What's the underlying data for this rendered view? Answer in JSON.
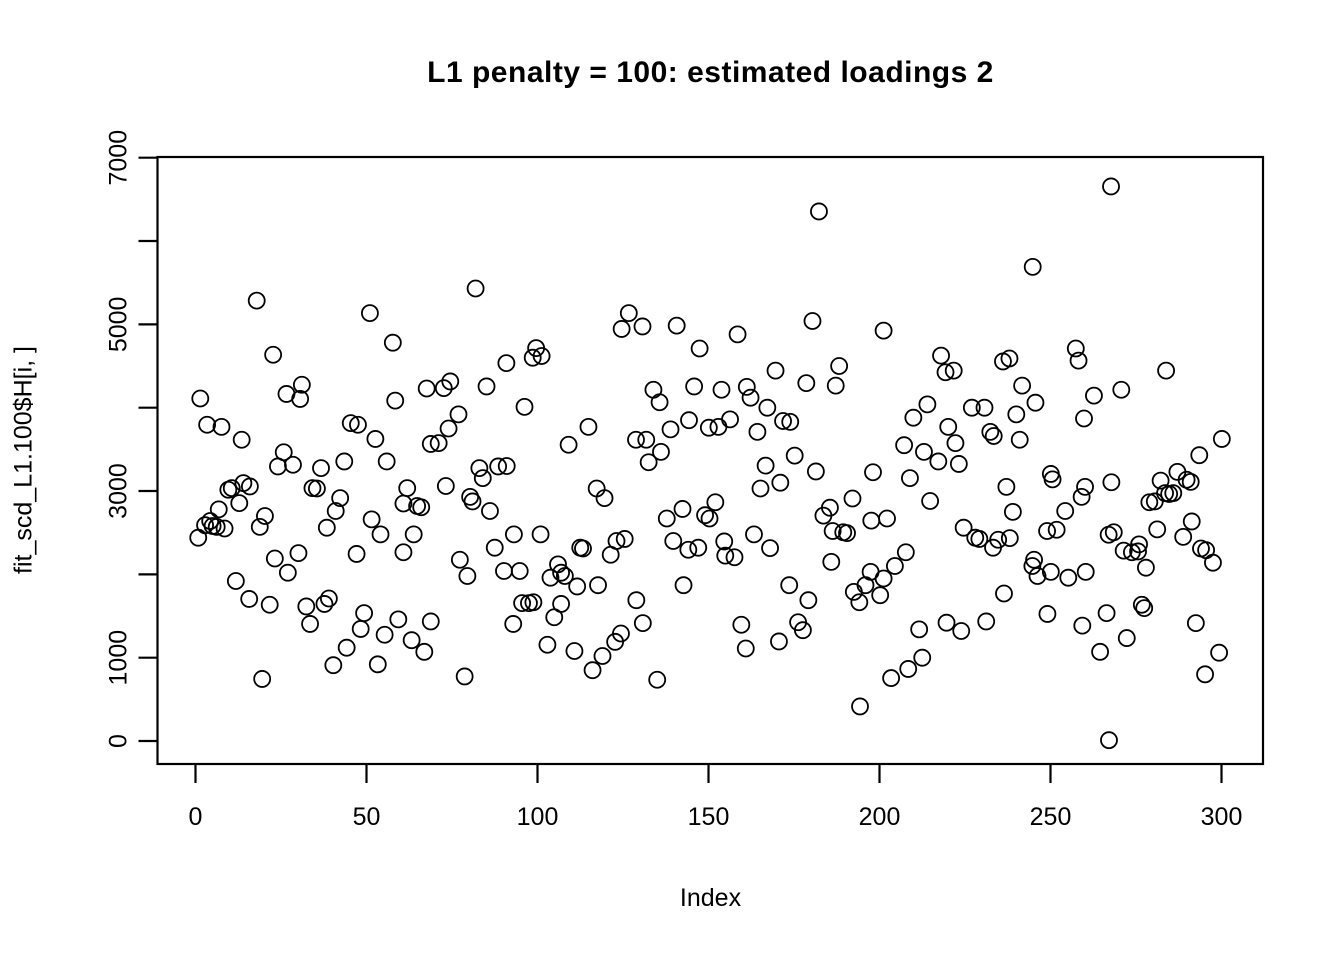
{
  "title": "L1 penalty = 100: estimated loadings 2",
  "colors": {
    "background": "#ffffff",
    "foreground": "#000000",
    "marker_stroke": "#000000"
  },
  "chart_data": {
    "type": "scatter",
    "title": "L1 penalty = 100: estimated loadings 2",
    "xlabel": "Index",
    "ylabel": "fit_scd_L1.100$H[i, ]",
    "xlim": [
      -11,
      311
    ],
    "ylim": [
      -280,
      7120
    ],
    "grid": false,
    "legend_position": null,
    "marker": "open-circle",
    "x_ticks": [
      {
        "value": 0,
        "label": "0"
      },
      {
        "value": 50,
        "label": "50"
      },
      {
        "value": 100,
        "label": "100"
      },
      {
        "value": 150,
        "label": "150"
      },
      {
        "value": 200,
        "label": "200"
      },
      {
        "value": 250,
        "label": "250"
      },
      {
        "value": 300,
        "label": "300"
      }
    ],
    "y_ticks": [
      {
        "value": 0,
        "label": "0"
      },
      {
        "value": 1000,
        "label": "1000"
      },
      {
        "value": 2000,
        "label": ""
      },
      {
        "value": 3000,
        "label": "3000"
      },
      {
        "value": 4000,
        "label": ""
      },
      {
        "value": 5000,
        "label": "5000"
      },
      {
        "value": 6000,
        "label": ""
      },
      {
        "value": 7000,
        "label": "7000"
      }
    ],
    "points": [
      [
        17.9,
        5285
      ],
      [
        51,
        5135
      ],
      [
        57.7,
        4780
      ],
      [
        22.7,
        4635
      ],
      [
        81.9,
        5430
      ],
      [
        126.7,
        5135
      ],
      [
        124.6,
        4945
      ],
      [
        130.7,
        4975
      ],
      [
        140.7,
        4985
      ],
      [
        99.6,
        4715
      ],
      [
        101.2,
        4620
      ],
      [
        147.4,
        4710
      ],
      [
        182.3,
        6355
      ],
      [
        180.4,
        5040
      ],
      [
        158.5,
        4880
      ],
      [
        201.2,
        4925
      ],
      [
        218,
        4625
      ],
      [
        267.7,
        6655
      ],
      [
        244.8,
        5690
      ],
      [
        257.4,
        4710
      ],
      [
        258.2,
        4565
      ],
      [
        238,
        4590
      ],
      [
        31.1,
        4275
      ],
      [
        26.6,
        4165
      ],
      [
        30.6,
        4105
      ],
      [
        1.4,
        4110
      ],
      [
        3.4,
        3795
      ],
      [
        7.6,
        3770
      ],
      [
        58.4,
        4085
      ],
      [
        67.6,
        4230
      ],
      [
        45.4,
        3815
      ],
      [
        47.5,
        3795
      ],
      [
        52.6,
        3625
      ],
      [
        13.5,
        3615
      ],
      [
        68.8,
        3565
      ],
      [
        25.8,
        3465
      ],
      [
        24.1,
        3295
      ],
      [
        28.5,
        3315
      ],
      [
        36.7,
        3275
      ],
      [
        43.5,
        3355
      ],
      [
        55.9,
        3355
      ],
      [
        34.2,
        3035
      ],
      [
        35.5,
        3030
      ],
      [
        9.6,
        3015
      ],
      [
        10.6,
        3035
      ],
      [
        14,
        3095
      ],
      [
        15.9,
        3055
      ],
      [
        61.9,
        3035
      ],
      [
        60.8,
        2850
      ],
      [
        64.8,
        2820
      ],
      [
        66,
        2805
      ],
      [
        12.8,
        2855
      ],
      [
        6.8,
        2780
      ],
      [
        42.3,
        2915
      ],
      [
        41,
        2760
      ],
      [
        4.3,
        2640
      ],
      [
        5,
        2580
      ],
      [
        6.2,
        2570
      ],
      [
        8.5,
        2550
      ],
      [
        2.8,
        2590
      ],
      [
        20.3,
        2700
      ],
      [
        18.8,
        2570
      ],
      [
        38.4,
        2560
      ],
      [
        51.5,
        2660
      ],
      [
        54.1,
        2480
      ],
      [
        63.8,
        2480
      ],
      [
        0.8,
        2440
      ],
      [
        23.2,
        2190
      ],
      [
        30.1,
        2255
      ],
      [
        47.1,
        2245
      ],
      [
        60.8,
        2265
      ],
      [
        90.9,
        4535
      ],
      [
        98.6,
        4600
      ],
      [
        74.5,
        4315
      ],
      [
        72.6,
        4235
      ],
      [
        85.1,
        4255
      ],
      [
        96.2,
        4010
      ],
      [
        76.9,
        3920
      ],
      [
        74,
        3750
      ],
      [
        71.1,
        3575
      ],
      [
        114.9,
        3770
      ],
      [
        109.1,
        3555
      ],
      [
        133.9,
        4215
      ],
      [
        135.7,
        4065
      ],
      [
        145.8,
        4255
      ],
      [
        144.3,
        3850
      ],
      [
        138.9,
        3740
      ],
      [
        128.8,
        3615
      ],
      [
        131.8,
        3615
      ],
      [
        136.1,
        3470
      ],
      [
        132.5,
        3345
      ],
      [
        150.1,
        3760
      ],
      [
        88.5,
        3295
      ],
      [
        91,
        3300
      ],
      [
        83,
        3275
      ],
      [
        84,
        3155
      ],
      [
        73.2,
        3060
      ],
      [
        80.3,
        2930
      ],
      [
        81,
        2875
      ],
      [
        86.1,
        2760
      ],
      [
        117.3,
        3030
      ],
      [
        119.6,
        2915
      ],
      [
        93.1,
        2480
      ],
      [
        100.9,
        2480
      ],
      [
        87.5,
        2320
      ],
      [
        112.5,
        2320
      ],
      [
        113.3,
        2310
      ],
      [
        123.1,
        2400
      ],
      [
        125.5,
        2425
      ],
      [
        137.8,
        2670
      ],
      [
        142.4,
        2785
      ],
      [
        149,
        2710
      ],
      [
        150.3,
        2670
      ],
      [
        152,
        2865
      ],
      [
        139.7,
        2400
      ],
      [
        144.1,
        2295
      ],
      [
        147,
        2320
      ],
      [
        77.3,
        2175
      ],
      [
        121.4,
        2235
      ],
      [
        106,
        2120
      ],
      [
        169.6,
        4445
      ],
      [
        188.2,
        4500
      ],
      [
        178.6,
        4295
      ],
      [
        187.2,
        4265
      ],
      [
        153.8,
        4215
      ],
      [
        161.2,
        4250
      ],
      [
        162.3,
        4120
      ],
      [
        167.2,
        4000
      ],
      [
        171.8,
        3840
      ],
      [
        173.9,
        3830
      ],
      [
        156.3,
        3860
      ],
      [
        152.9,
        3770
      ],
      [
        164.3,
        3710
      ],
      [
        175.2,
        3425
      ],
      [
        166.7,
        3305
      ],
      [
        165.2,
        3030
      ],
      [
        171,
        3100
      ],
      [
        181.4,
        3235
      ],
      [
        198.1,
        3225
      ],
      [
        208.9,
        3155
      ],
      [
        207.2,
        3550
      ],
      [
        213,
        3470
      ],
      [
        217.2,
        3355
      ],
      [
        223.2,
        3325
      ],
      [
        214,
        4040
      ],
      [
        209.9,
        3880
      ],
      [
        219.3,
        4425
      ],
      [
        221.7,
        4445
      ],
      [
        227,
        4000
      ],
      [
        220.1,
        3770
      ],
      [
        222.2,
        3575
      ],
      [
        230.7,
        4000
      ],
      [
        192.1,
        2910
      ],
      [
        185.5,
        2800
      ],
      [
        183.6,
        2705
      ],
      [
        186.3,
        2520
      ],
      [
        189.4,
        2505
      ],
      [
        190.5,
        2495
      ],
      [
        197.6,
        2645
      ],
      [
        202.2,
        2670
      ],
      [
        214.8,
        2880
      ],
      [
        163.3,
        2480
      ],
      [
        154.6,
        2395
      ],
      [
        168,
        2315
      ],
      [
        154.9,
        2225
      ],
      [
        157.6,
        2205
      ],
      [
        207.7,
        2265
      ],
      [
        204.5,
        2100
      ],
      [
        224.6,
        2560
      ],
      [
        228,
        2440
      ],
      [
        229.2,
        2425
      ],
      [
        185.9,
        2150
      ],
      [
        232.4,
        3710
      ],
      [
        233.4,
        3660
      ],
      [
        236.1,
        4555
      ],
      [
        283.8,
        4445
      ],
      [
        241.7,
        4265
      ],
      [
        245.6,
        4060
      ],
      [
        240,
        3920
      ],
      [
        262.7,
        4145
      ],
      [
        270.7,
        4215
      ],
      [
        259.8,
        3870
      ],
      [
        241,
        3615
      ],
      [
        293.5,
        3430
      ],
      [
        300.1,
        3625
      ],
      [
        250.1,
        3205
      ],
      [
        250.6,
        3140
      ],
      [
        237.1,
        3050
      ],
      [
        260.1,
        3050
      ],
      [
        259.1,
        2930
      ],
      [
        267.8,
        3105
      ],
      [
        282.2,
        3125
      ],
      [
        287.1,
        3230
      ],
      [
        289.8,
        3135
      ],
      [
        291,
        3110
      ],
      [
        283.5,
        2975
      ],
      [
        284.7,
        2965
      ],
      [
        285.9,
        2975
      ],
      [
        278.9,
        2865
      ],
      [
        280.5,
        2875
      ],
      [
        239,
        2750
      ],
      [
        254.3,
        2760
      ],
      [
        249,
        2520
      ],
      [
        251.8,
        2535
      ],
      [
        267,
        2475
      ],
      [
        268.5,
        2505
      ],
      [
        281.2,
        2540
      ],
      [
        291.3,
        2635
      ],
      [
        288.8,
        2450
      ],
      [
        234.7,
        2415
      ],
      [
        238.1,
        2435
      ],
      [
        233.2,
        2320
      ],
      [
        271.4,
        2285
      ],
      [
        273.8,
        2265
      ],
      [
        275.6,
        2275
      ],
      [
        294,
        2310
      ],
      [
        295.5,
        2290
      ],
      [
        275.9,
        2360
      ],
      [
        245.2,
        2175
      ],
      [
        297.5,
        2140
      ],
      [
        27,
        2020
      ],
      [
        11.8,
        1920
      ],
      [
        15.7,
        1705
      ],
      [
        21.7,
        1635
      ],
      [
        32.4,
        1615
      ],
      [
        37.7,
        1645
      ],
      [
        39,
        1710
      ],
      [
        33.5,
        1405
      ],
      [
        49.3,
        1535
      ],
      [
        48.3,
        1345
      ],
      [
        55.3,
        1275
      ],
      [
        59.3,
        1460
      ],
      [
        63.2,
        1210
      ],
      [
        66.9,
        1070
      ],
      [
        68.8,
        1435
      ],
      [
        44.2,
        1120
      ],
      [
        40.3,
        910
      ],
      [
        53.3,
        920
      ],
      [
        19.5,
        745
      ],
      [
        79.5,
        1980
      ],
      [
        90.2,
        2040
      ],
      [
        94.8,
        2040
      ],
      [
        103.8,
        1960
      ],
      [
        108,
        1980
      ],
      [
        106.9,
        2020
      ],
      [
        111.6,
        1855
      ],
      [
        117.7,
        1870
      ],
      [
        142.7,
        1870
      ],
      [
        128.9,
        1690
      ],
      [
        95.5,
        1655
      ],
      [
        97.5,
        1655
      ],
      [
        98.8,
        1665
      ],
      [
        106.9,
        1645
      ],
      [
        104.9,
        1485
      ],
      [
        130.8,
        1415
      ],
      [
        92.9,
        1405
      ],
      [
        102.9,
        1155
      ],
      [
        110.8,
        1080
      ],
      [
        124.4,
        1290
      ],
      [
        122.7,
        1190
      ],
      [
        119,
        1020
      ],
      [
        116.1,
        850
      ],
      [
        135,
        735
      ],
      [
        78.7,
        775
      ],
      [
        197.4,
        2030
      ],
      [
        173.6,
        1870
      ],
      [
        179.2,
        1690
      ],
      [
        192.5,
        1790
      ],
      [
        195.9,
        1870
      ],
      [
        201.2,
        1950
      ],
      [
        200.2,
        1750
      ],
      [
        194.1,
        1665
      ],
      [
        159.6,
        1395
      ],
      [
        160.9,
        1110
      ],
      [
        170.6,
        1195
      ],
      [
        176.2,
        1425
      ],
      [
        177.6,
        1330
      ],
      [
        211.6,
        1340
      ],
      [
        219.6,
        1420
      ],
      [
        223.9,
        1320
      ],
      [
        231.2,
        1435
      ],
      [
        212.5,
        1000
      ],
      [
        208.4,
        865
      ],
      [
        203.4,
        755
      ],
      [
        194.3,
        415
      ],
      [
        244.7,
        2100
      ],
      [
        246.2,
        1980
      ],
      [
        250.1,
        2030
      ],
      [
        255.2,
        1960
      ],
      [
        260.3,
        2030
      ],
      [
        277.9,
        2080
      ],
      [
        236.4,
        1770
      ],
      [
        249.1,
        1525
      ],
      [
        259.3,
        1385
      ],
      [
        266.4,
        1535
      ],
      [
        276.7,
        1635
      ],
      [
        277.4,
        1595
      ],
      [
        272.3,
        1235
      ],
      [
        264.5,
        1070
      ],
      [
        292.5,
        1415
      ],
      [
        299.3,
        1060
      ],
      [
        295.2,
        800
      ],
      [
        267.1,
        10
      ]
    ]
  }
}
